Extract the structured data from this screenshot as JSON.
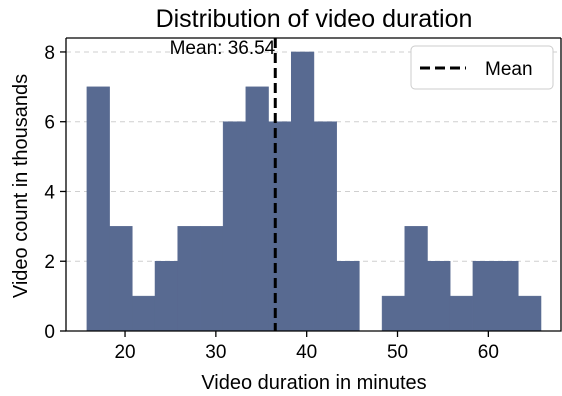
{
  "chart_data": {
    "type": "bar",
    "title": "Distribution of video duration",
    "xlabel": "Video duration in minutes",
    "ylabel": "Video count in thousands",
    "xlim": [
      13.5,
      68.0
    ],
    "ylim": [
      0,
      8.4
    ],
    "xticks": [
      20,
      30,
      40,
      50,
      60
    ],
    "yticks": [
      0,
      2,
      4,
      6,
      8
    ],
    "grid": "horizontal dashed",
    "bin_edges": [
      15.8,
      18.3,
      20.8,
      23.3,
      25.8,
      28.3,
      30.8,
      33.3,
      35.8,
      38.3,
      40.8,
      43.3,
      45.8,
      48.3,
      50.8,
      53.3,
      55.8,
      58.3,
      60.8,
      63.3,
      65.8
    ],
    "values": [
      7,
      3,
      1,
      2,
      3,
      3,
      6,
      7,
      6,
      8,
      6,
      2,
      0,
      1,
      3,
      2,
      1,
      2,
      2,
      1
    ],
    "bar_color": "#586a91",
    "mean": 36.54,
    "mean_label": "Mean: 36.54",
    "legend": {
      "label": "Mean",
      "position": "top-right"
    }
  }
}
